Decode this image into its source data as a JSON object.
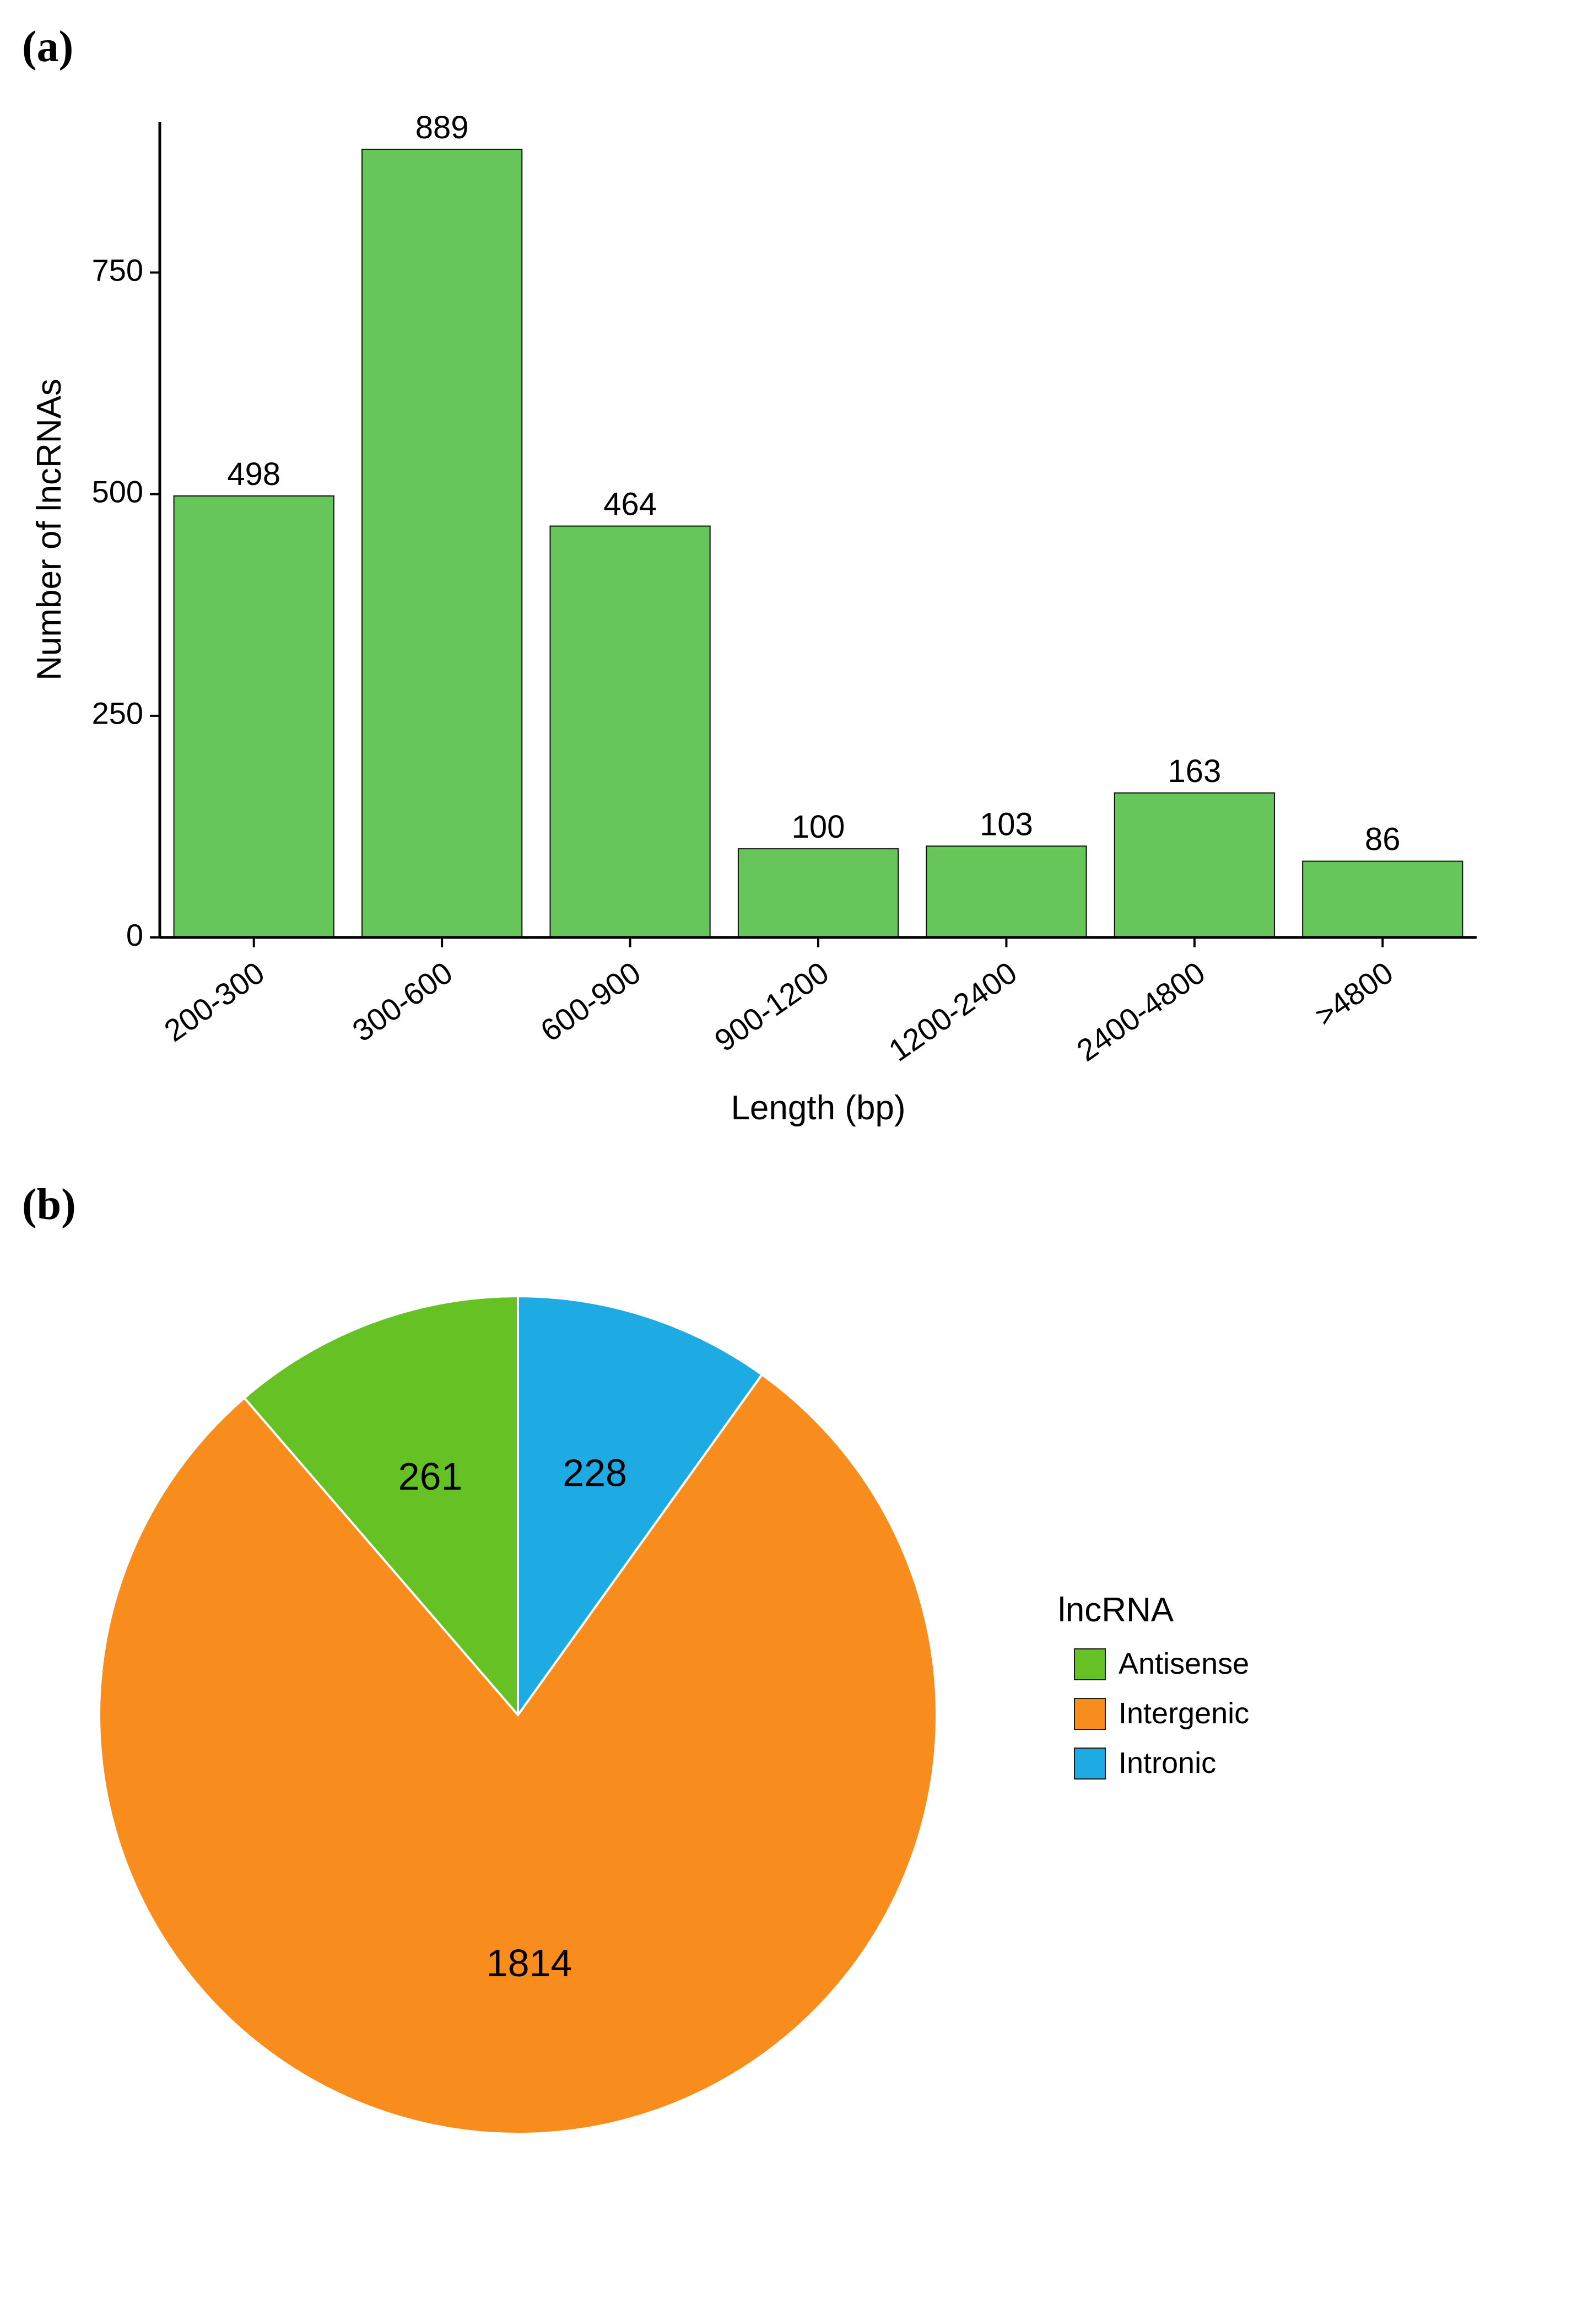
{
  "panels": {
    "a": {
      "label": "(a)"
    },
    "b": {
      "label": "(b)"
    }
  },
  "bar_chart": {
    "type": "bar",
    "xlabel": "Length (bp)",
    "ylabel": "Number of lncRNAs",
    "categories": [
      "200-300",
      "300-600",
      "600-900",
      "900-1200",
      "1200-2400",
      "2400-4800",
      ">4800"
    ],
    "values": [
      498,
      889,
      464,
      100,
      103,
      163,
      86
    ],
    "bar_labels": [
      "498",
      "889",
      "464",
      "100",
      "103",
      "163",
      "86"
    ],
    "bar_color": "#66c659",
    "bar_border": "#0f0f0f",
    "background_color": "#ffffff",
    "axis_color": "#000000",
    "tick_color": "#000000",
    "text_color": "#000000",
    "ylim": [
      0,
      920
    ],
    "yticks": [
      0,
      250,
      500,
      750
    ],
    "bar_width": 0.85,
    "label_fontsize": 58,
    "axis_label_fontsize": 62,
    "tick_fontsize": 56,
    "xtick_rotation": -35
  },
  "pie_chart": {
    "type": "pie",
    "legend_title": "lncRNA",
    "slices": [
      {
        "name": "Antisense",
        "value": 261,
        "label": "261",
        "color": "#66c224"
      },
      {
        "name": "Intronic",
        "value": 228,
        "label": "228",
        "color": "#1eaae3"
      },
      {
        "name": "Intergenic",
        "value": 1814,
        "label": "1814",
        "color": "#f88d1e"
      }
    ],
    "slice_border_color": "#ffffff",
    "slice_border_width": 4,
    "background_color": "#ffffff",
    "text_color": "#000000",
    "legend_text_color": "#000000",
    "value_fontsize": 70,
    "legend_title_fontsize": 62,
    "legend_item_fontsize": 54,
    "legend_swatch_size": 56,
    "legend_swatch_border": "#1a1a1a",
    "start_angle_deg": 0
  }
}
